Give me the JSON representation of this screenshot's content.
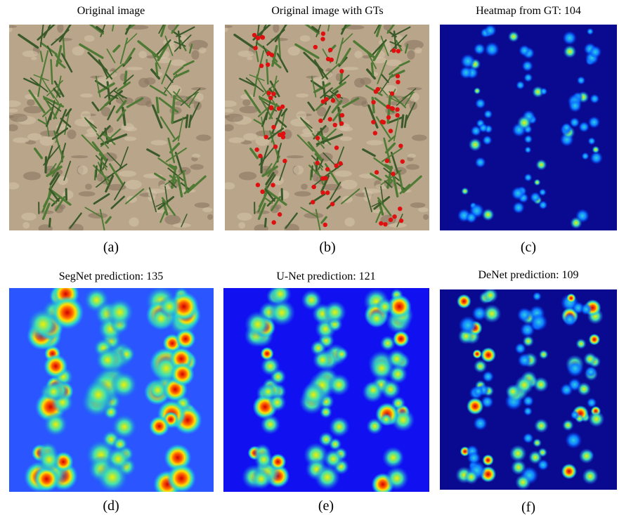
{
  "panels": [
    {
      "title": "Original image",
      "caption": "(a)"
    },
    {
      "title": "Original image with GTs",
      "caption": "(b)"
    },
    {
      "title": "Heatmap from GT: 104",
      "caption": "(c)"
    },
    {
      "title": "SegNet prediction: 135",
      "caption": "(d)"
    },
    {
      "title": "U-Net prediction: 121",
      "caption": "(e)"
    },
    {
      "title": "DeNet prediction: 109",
      "caption": "(f)"
    }
  ]
}
